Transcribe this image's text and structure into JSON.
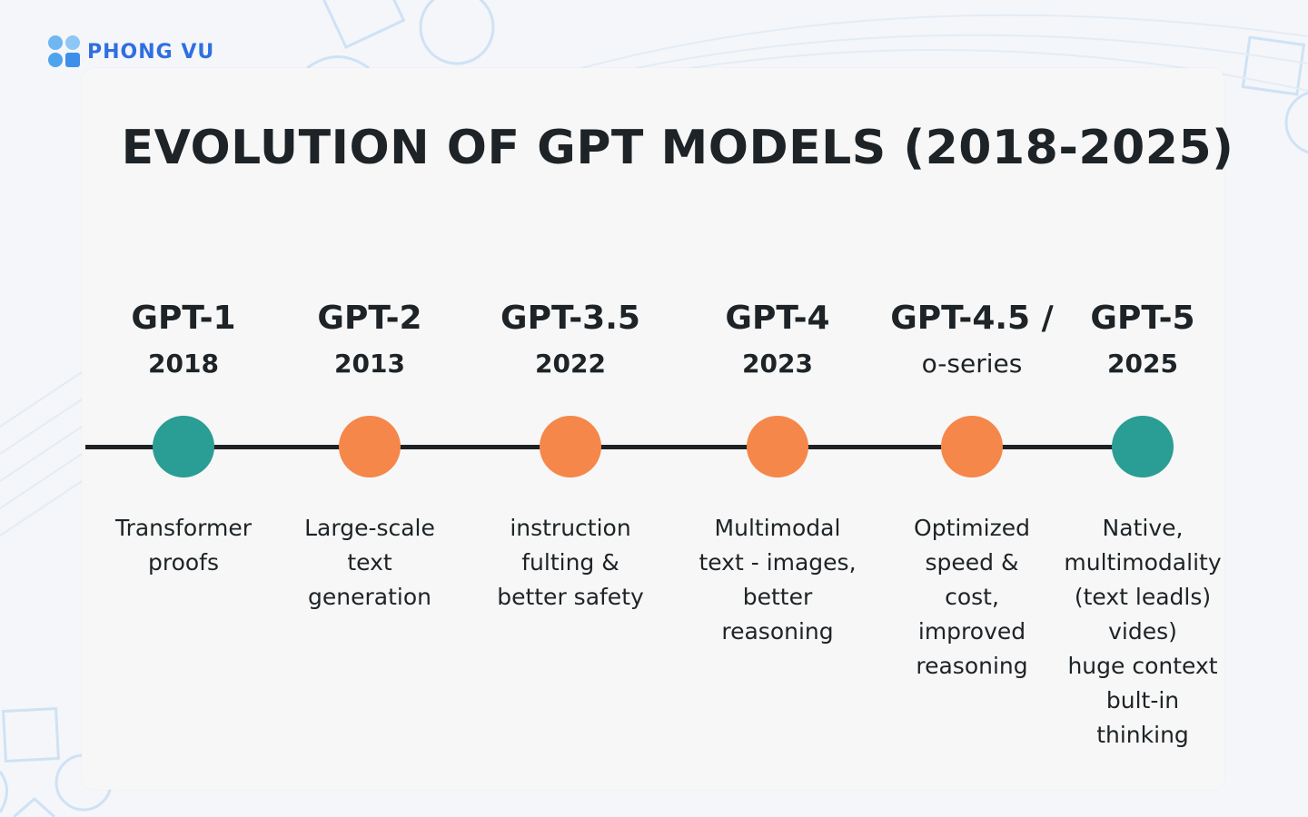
{
  "brand": {
    "name": "PHONG VU",
    "color": "#2f6fe0"
  },
  "title": "EVOLUTION OF GPT MODELS (2018-2025)",
  "colors": {
    "teal": "#2a9d94",
    "orange": "#f5874a",
    "line": "#1f2224"
  },
  "milestones": [
    {
      "model": "GPT-1",
      "year": "2018",
      "dot_color": "#2a9d94",
      "desc": [
        "Transformer",
        "proofs"
      ]
    },
    {
      "model": "GPT-2",
      "year": "2013",
      "dot_color": "#f5874a",
      "desc": [
        "Large-scale",
        "text",
        "generation"
      ]
    },
    {
      "model": "GPT-3.5",
      "year": "2022",
      "dot_color": "#f5874a",
      "desc": [
        "instruction",
        "fulting &",
        "better safety"
      ]
    },
    {
      "model": "GPT-4",
      "year": "2023",
      "dot_color": "#f5874a",
      "desc": [
        "Multimodal",
        "text - images,",
        "better",
        "reasoning"
      ]
    },
    {
      "model": "GPT-4.5 /",
      "year": "o-series",
      "dot_color": "#f5874a",
      "desc": [
        "Optimized",
        "speed &",
        "cost,",
        "improved",
        "reasoning"
      ]
    },
    {
      "model": "GPT-5",
      "year": "2025",
      "dot_color": "#2a9d94",
      "desc": [
        "Native,",
        "multimodality",
        "(text leadls)",
        "vides)",
        "huge context",
        "bult-in",
        "thinking"
      ]
    }
  ]
}
